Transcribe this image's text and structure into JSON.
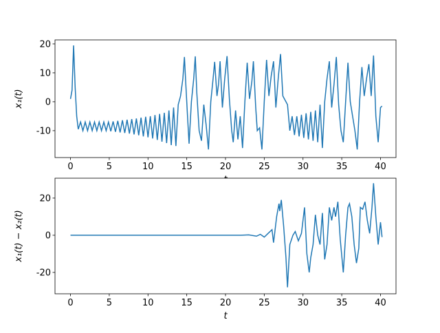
{
  "chart_data": [
    {
      "type": "line",
      "xlabel": "t",
      "ylabel": "x₁(t)",
      "color": "#1f77b4",
      "xlim": [
        -2,
        42
      ],
      "ylim": [
        -19.3,
        21.4
      ],
      "xticks": [
        0,
        5,
        10,
        15,
        20,
        25,
        30,
        35,
        40
      ],
      "yticks": [
        -10,
        0,
        10,
        20
      ],
      "x": [
        0,
        0.2,
        0.4,
        0.6,
        0.8,
        1.0,
        1.3,
        1.6,
        1.9,
        2.2,
        2.5,
        2.8,
        3.1,
        3.4,
        3.7,
        4.0,
        4.3,
        4.6,
        4.9,
        5.2,
        5.5,
        5.8,
        6.1,
        6.4,
        6.7,
        7.0,
        7.3,
        7.6,
        7.9,
        8.2,
        8.5,
        8.8,
        9.1,
        9.4,
        9.7,
        10.0,
        10.3,
        10.6,
        10.9,
        11.2,
        11.5,
        11.8,
        12.1,
        12.4,
        12.7,
        13.0,
        13.3,
        13.6,
        13.9,
        14.2,
        14.5,
        14.7,
        14.9,
        15.1,
        15.3,
        15.6,
        15.9,
        16.1,
        16.3,
        16.6,
        16.9,
        17.2,
        17.5,
        17.8,
        18.1,
        18.4,
        18.6,
        18.9,
        19.1,
        19.3,
        19.6,
        19.9,
        20.2,
        20.5,
        20.8,
        21.0,
        21.3,
        21.6,
        21.9,
        22.2,
        22.5,
        22.8,
        23.1,
        23.4,
        23.6,
        23.9,
        24.1,
        24.4,
        24.7,
        25.0,
        25.3,
        25.6,
        25.9,
        26.2,
        26.5,
        26.8,
        27.1,
        27.4,
        27.8,
        28.0,
        28.3,
        28.6,
        28.9,
        29.2,
        29.5,
        29.8,
        30.1,
        30.4,
        30.7,
        31.0,
        31.3,
        31.6,
        31.9,
        32.2,
        32.5,
        32.8,
        33.1,
        33.4,
        33.7,
        34.0,
        34.3,
        34.6,
        34.9,
        35.2,
        35.5,
        35.8,
        36.1,
        36.4,
        36.7,
        37.0,
        37.3,
        37.6,
        37.9,
        38.2,
        38.5,
        38.8,
        39.1,
        39.4,
        39.7,
        40.0,
        40.2
      ],
      "values": [
        1,
        4,
        19.5,
        5,
        -5,
        -9.5,
        -7,
        -10,
        -7,
        -10,
        -7,
        -10,
        -7,
        -10,
        -7,
        -10,
        -7,
        -10,
        -7,
        -10.2,
        -6.8,
        -10.4,
        -6.6,
        -10.6,
        -6.4,
        -10.8,
        -6.2,
        -11,
        -6,
        -11.3,
        -5.8,
        -11.6,
        -5.5,
        -12,
        -5.2,
        -12.3,
        -5,
        -12.7,
        -4.6,
        -13.2,
        -4.2,
        -13.8,
        -3.8,
        -14.3,
        -3,
        -15,
        -2,
        -15.3,
        -1,
        2,
        8,
        15.5,
        5,
        -5,
        -14.5,
        0,
        8,
        15.7,
        3,
        -10,
        -13.5,
        -1,
        -8,
        -16.5,
        0,
        8,
        13.8,
        2,
        6,
        14,
        -2,
        8,
        15.8,
        1,
        -10,
        -14,
        -3,
        -13,
        -5,
        -16,
        0,
        13.5,
        1,
        7,
        14,
        -2,
        -10,
        -9,
        -16.5,
        0,
        14.5,
        2,
        9,
        14,
        -2,
        8,
        16.5,
        2,
        0,
        -1,
        -10,
        -5,
        -11.5,
        -5,
        -12,
        -4.5,
        -12.5,
        -4,
        -13,
        -3.5,
        -13.5,
        -3,
        -14,
        -1,
        -16,
        0,
        8,
        14,
        -2,
        6,
        15.5,
        -1,
        -10,
        -14,
        0,
        13.5,
        0,
        -5,
        -10,
        -16.5,
        0,
        12,
        2,
        8,
        13,
        2,
        16,
        -5,
        -14,
        -2,
        -1.5
      ]
    },
    {
      "type": "line",
      "xlabel": "t",
      "ylabel": "x₁(t) − x₂(t)",
      "color": "#1f77b4",
      "xlim": [
        -2,
        42
      ],
      "ylim": [
        -31.5,
        30.7
      ],
      "xticks": [
        0,
        5,
        10,
        15,
        20,
        25,
        30,
        35,
        40
      ],
      "yticks": [
        -20,
        0,
        20
      ],
      "x": [
        0,
        22,
        23,
        24,
        24.5,
        25,
        25.5,
        26,
        26.2,
        26.6,
        26.9,
        27.0,
        27.2,
        27.5,
        27.8,
        28.0,
        28.3,
        28.7,
        29,
        29.4,
        29.8,
        30.2,
        30.5,
        30.8,
        31.0,
        31.3,
        31.6,
        31.9,
        32.2,
        32.5,
        32.8,
        33.1,
        33.4,
        33.7,
        34.0,
        34.2,
        34.5,
        34.8,
        35.2,
        35.5,
        35.8,
        36.0,
        36.3,
        36.6,
        36.9,
        37.2,
        37.4,
        37.7,
        38.0,
        38.3,
        38.6,
        38.9,
        39.1,
        39.4,
        39.7,
        40.0,
        40.2
      ],
      "values": [
        0,
        0,
        0.2,
        -0.5,
        0.5,
        -1,
        1,
        3,
        -4,
        10,
        17,
        13,
        19,
        5,
        -12,
        -28,
        -5,
        0,
        2,
        -3,
        1,
        15,
        -10,
        -20,
        -12,
        -5,
        11,
        0,
        -5,
        12,
        -13,
        -5,
        15,
        8,
        15,
        10,
        18,
        -2,
        -20,
        0,
        15,
        17,
        10,
        -5,
        -15,
        -7,
        15,
        14,
        18,
        8,
        1,
        15,
        28,
        10,
        -5,
        7,
        -1
      ]
    }
  ]
}
